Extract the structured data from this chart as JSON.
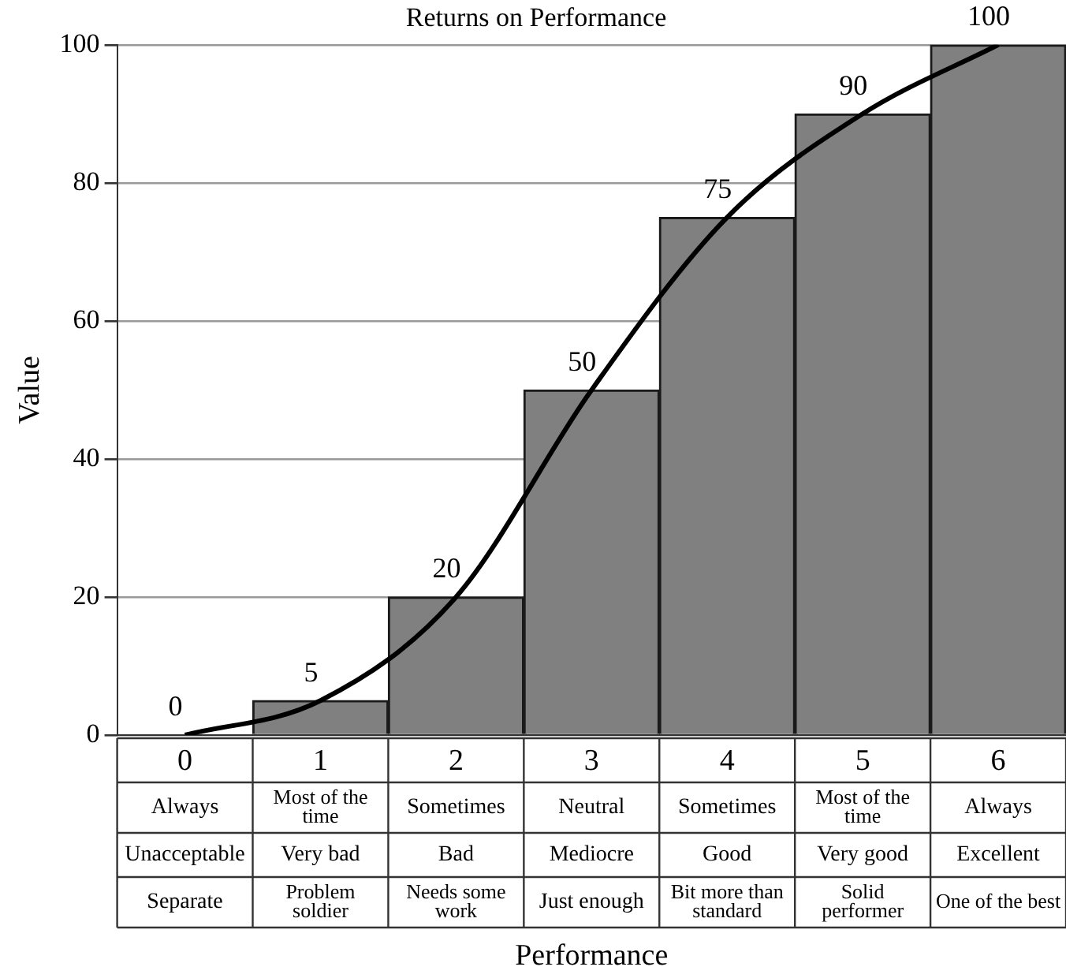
{
  "chart_data": {
    "type": "bar",
    "title": "Returns on Performance",
    "xlabel": "Performance",
    "ylabel": "Value",
    "categories": [
      "0\nAlways\nUnacceptable\nSeparate",
      "1\nMost of the time\nVery bad\nProblem soldier",
      "2\nSometimes\nBad\nNeeds some work",
      "3\nNeutral\nMediocre\nJust enough",
      "4\nSometimes\nGood\nBit more than standard",
      "5\nMost of the time\nVery good\nSolid performer",
      "6\nAlways\nExcellent\nOne of the best"
    ],
    "series": [
      {
        "color": "#808080",
        "values": [
          0,
          5,
          20,
          50,
          75,
          90,
          100
        ]
      },
      {
        "type": "line",
        "color": "#000000",
        "values": [
          0,
          5,
          20,
          50,
          75,
          90,
          100
        ],
        "value_labels": [
          "0",
          "5",
          "20",
          "50",
          "75",
          "90",
          "100"
        ]
      }
    ],
    "ylim": [
      0,
      100
    ],
    "yticks": [
      0,
      20,
      40,
      60,
      80,
      100
    ],
    "grid": "y",
    "legend": false,
    "marker": "none",
    "line_style": "solid"
  }
}
